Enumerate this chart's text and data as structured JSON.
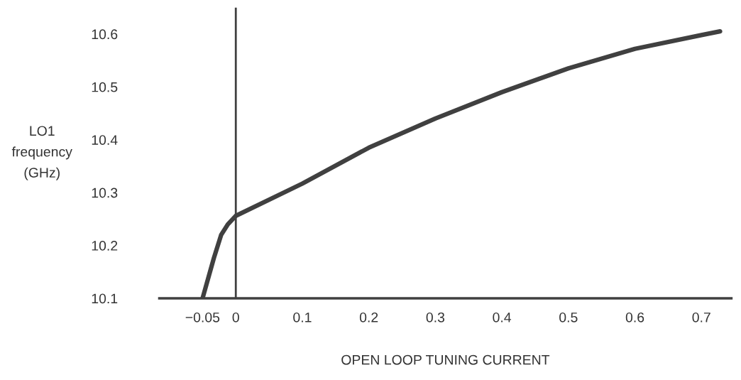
{
  "chart_data": {
    "type": "line",
    "xlabel": "OPEN LOOP TUNING CURRENT",
    "ylabel": "LO1\nfrequency\n(GHz)",
    "x": [
      -0.05,
      -0.033,
      -0.022,
      -0.012,
      0,
      0.1,
      0.2,
      0.3,
      0.4,
      0.5,
      0.6,
      0.7,
      0.728
    ],
    "series": [
      {
        "color": "#404040",
        "values": [
          10.1,
          10.176,
          10.22,
          10.24,
          10.256,
          10.317,
          10.385,
          10.44,
          10.49,
          10.535,
          10.572,
          10.598,
          10.605
        ]
      }
    ],
    "xlim": [
      -0.115,
      0.745
    ],
    "ylim": [
      10.1,
      10.65
    ],
    "xticks": [
      {
        "value": -0.05,
        "label": "−0.05"
      },
      0,
      0.1,
      0.2,
      0.3,
      0.4,
      0.5,
      0.6,
      0.7
    ],
    "yticks": [
      10.1,
      10.2,
      10.3,
      10.4,
      10.5,
      10.6
    ],
    "ref_lines": [
      {
        "axis": "x",
        "value": 0,
        "color": "#404040"
      }
    ],
    "grid": false,
    "legend": false,
    "marker": "none",
    "line_style": "solid"
  }
}
